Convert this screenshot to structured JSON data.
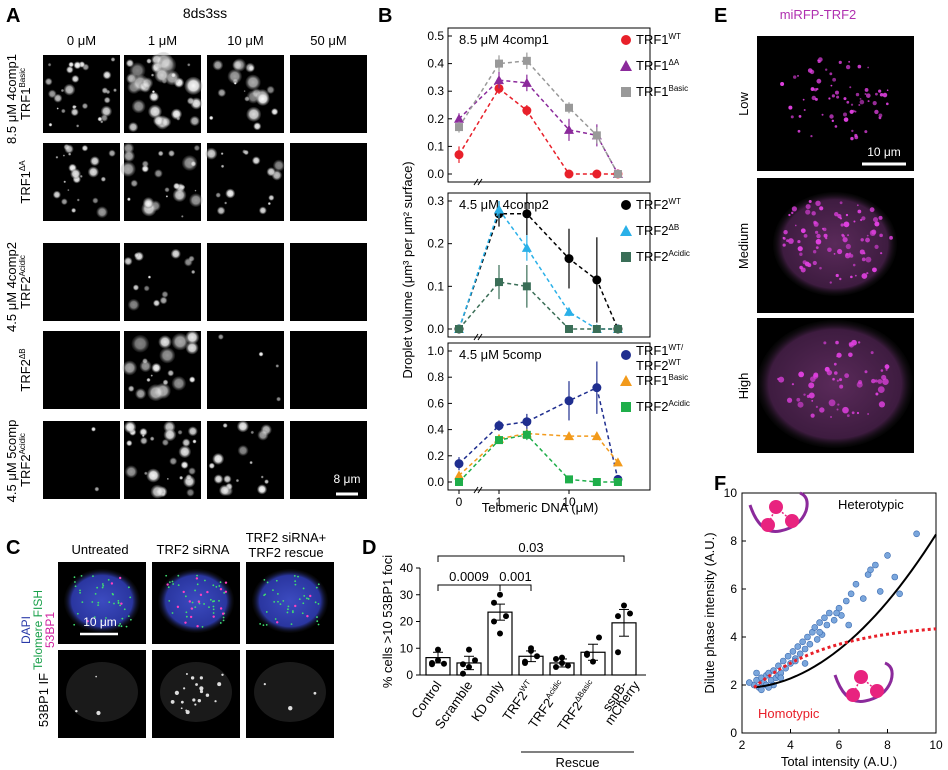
{
  "panels": {
    "A": "A",
    "B": "B",
    "C": "C",
    "D": "D",
    "E": "E",
    "F": "F"
  },
  "panel_a": {
    "header": "8ds3ss",
    "columns": [
      "0 μM",
      "1 μM",
      "10 μM",
      "50 μM"
    ],
    "group_labels": [
      "8.5 μM 4comp1",
      "4.5 μM 4comp2",
      "4.5 μM 5comp"
    ],
    "row_labels": [
      {
        "base": "TRF1",
        "sup": "Basic"
      },
      {
        "base": "TRF1",
        "sup": "ΔA"
      },
      {
        "base": "TRF2",
        "sup": "Acidic"
      },
      {
        "base": "TRF2",
        "sup": "ΔB"
      },
      {
        "base": "TRF2",
        "sup": "Acidic"
      }
    ],
    "scale_bar": "8 μm"
  },
  "panel_b": {
    "ylabel": "Droplet volume (μm³ per μm² surface)",
    "xlabel": "Telomeric DNA (μM)"
  },
  "panel_c": {
    "columns": [
      "Untreated",
      "TRF2 siRNA",
      "TRF2 siRNA+",
      "TRF2 rescue"
    ],
    "channel_labels": [
      "DAPI",
      "Telomere FISH",
      "53BP1"
    ],
    "row2_label": "53BP1 IF",
    "scale_bar": "10 μm"
  },
  "panel_e": {
    "title": "miRFP-TRF2",
    "rows": [
      "Low",
      "Medium",
      "High"
    ],
    "scale_bar": "10 μm"
  },
  "chart_data": [
    {
      "type": "line",
      "title": "8.5 μM 4comp1",
      "x": [
        0,
        1,
        2.5,
        10,
        25,
        50
      ],
      "xscale": "log (break at 0)",
      "xticks": [
        "0",
        "1",
        "10"
      ],
      "ylim": [
        0,
        0.5
      ],
      "yticks": [
        "0.0",
        "0.1",
        "0.2",
        "0.3",
        "0.4",
        "0.5"
      ],
      "series": [
        {
          "name": "TRF1",
          "sup": "WT",
          "color": "#e8202a",
          "marker": "circle",
          "values": [
            0.07,
            0.31,
            0.23,
            0.0,
            0.0,
            0.0
          ],
          "err": [
            0.03,
            0.02,
            0.02,
            0.0,
            0.0,
            0.0
          ]
        },
        {
          "name": "TRF1",
          "sup": "ΔA",
          "color": "#8b2a9b",
          "marker": "triangle",
          "values": [
            0.2,
            0.34,
            0.33,
            0.16,
            0.14,
            0.0
          ],
          "err": [
            0.02,
            0.03,
            0.03,
            0.04,
            0.04,
            0.0
          ]
        },
        {
          "name": "TRF1",
          "sup": "Basic",
          "color": "#999999",
          "marker": "square",
          "values": [
            0.17,
            0.4,
            0.41,
            0.24,
            0.14,
            0.0
          ],
          "err": [
            0.02,
            0.03,
            0.03,
            0.02,
            0.03,
            0.0
          ]
        }
      ]
    },
    {
      "type": "line",
      "title": "4.5 μM 4comp2",
      "x": [
        0,
        1,
        2.5,
        10,
        25,
        50
      ],
      "xscale": "log (break at 0)",
      "xticks": [
        "0",
        "1",
        "10"
      ],
      "ylim": [
        0,
        0.3
      ],
      "yticks": [
        "0.0",
        "0.1",
        "0.2",
        "0.3"
      ],
      "series": [
        {
          "name": "TRF2",
          "sup": "WT",
          "color": "#000000",
          "marker": "circle",
          "values": [
            0.0,
            0.27,
            0.27,
            0.165,
            0.115,
            0.0
          ],
          "err": [
            0.0,
            0.03,
            0.05,
            0.07,
            0.1,
            0.0
          ]
        },
        {
          "name": "TRF2",
          "sup": "ΔB",
          "color": "#2ab0e8",
          "marker": "triangle",
          "values": [
            0.0,
            0.28,
            0.19,
            0.04,
            0.0,
            0.0
          ],
          "err": [
            0.0,
            0.02,
            0.03,
            0.01,
            0.0,
            0.0
          ]
        },
        {
          "name": "TRF2",
          "sup": "Acidic",
          "color": "#3a6e57",
          "marker": "square",
          "values": [
            0.0,
            0.11,
            0.1,
            0.0,
            0.0,
            0.0
          ],
          "err": [
            0.0,
            0.04,
            0.05,
            0.0,
            0.0,
            0.0
          ]
        }
      ]
    },
    {
      "type": "line",
      "title": "4.5 μM 5comp",
      "x": [
        0,
        1,
        2.5,
        10,
        25,
        50
      ],
      "xscale": "log (break at 0)",
      "xticks": [
        "0",
        "1",
        "10"
      ],
      "ylim": [
        0,
        1.0
      ],
      "yticks": [
        "0.0",
        "0.2",
        "0.4",
        "0.6",
        "0.8",
        "1.0"
      ],
      "series": [
        {
          "name": "TRF1",
          "sup": "WT",
          "name2": "TRF2",
          "sup2": "WT",
          "color": "#1f2e8f",
          "marker": "circle",
          "values": [
            0.14,
            0.43,
            0.46,
            0.62,
            0.72,
            0.02
          ],
          "err": [
            0.05,
            0.04,
            0.06,
            0.15,
            0.2,
            0.0
          ]
        },
        {
          "name": "TRF1",
          "sup": "Basic",
          "color": "#f29a1b",
          "marker": "triangle",
          "values": [
            0.05,
            0.33,
            0.37,
            0.35,
            0.35,
            0.15
          ],
          "err": [
            0.0,
            0.03,
            0.03,
            0.02,
            0.02,
            0.02
          ]
        },
        {
          "name": "TRF2",
          "sup": "Acidic",
          "color": "#1fae4a",
          "marker": "square",
          "values": [
            0.0,
            0.32,
            0.36,
            0.02,
            0.0,
            0.0
          ],
          "err": [
            0.0,
            0.03,
            0.04,
            0.0,
            0.0,
            0.0
          ]
        }
      ]
    },
    {
      "type": "bar",
      "ylabel": "% cells >10 53BP1 foci",
      "ylim": [
        0,
        40
      ],
      "yticks": [
        "0",
        "10",
        "20",
        "30",
        "40"
      ],
      "categories": [
        {
          "label": "Control"
        },
        {
          "label": "Scramble"
        },
        {
          "label": "KD only"
        },
        {
          "label": "TRF2",
          "sup": "WT"
        },
        {
          "label": "TRF2",
          "sup": "Acidic"
        },
        {
          "label": "TRF2",
          "sup": "ΔBasic"
        },
        {
          "label": "sspB-",
          "label2": "mCherry"
        }
      ],
      "values": [
        6.5,
        4.5,
        23.5,
        7,
        4.5,
        8.5,
        19.5
      ],
      "err": [
        2,
        2.5,
        3,
        2,
        1.5,
        3,
        5
      ],
      "points": [
        [
          4.5,
          9.5,
          4.2,
          4,
          5.5
        ],
        [
          0.5,
          3,
          5.5,
          4,
          9.5
        ],
        [
          27,
          30,
          22,
          20,
          15.5
        ],
        [
          5,
          9,
          7,
          4.5,
          10
        ],
        [
          3,
          6.5,
          3.5,
          6,
          4.5
        ],
        [
          7.5,
          5,
          14,
          8
        ],
        [
          22,
          26,
          23,
          8.5
        ]
      ],
      "group_label": "Rescue",
      "comparisons": [
        {
          "from": "Control",
          "to": "sspB-mCherry",
          "p": "0.03"
        },
        {
          "from": "Control",
          "to": "KD only",
          "p": "0.0009"
        },
        {
          "from": "KD only",
          "to": "TRF2 WT",
          "p": "0.001"
        }
      ]
    },
    {
      "type": "scatter",
      "xlabel": "Total intensity (A.U.)",
      "ylabel": "Dilute phase intensity (A.U.)",
      "xlim": [
        2,
        10
      ],
      "ylim": [
        0,
        10
      ],
      "xticks": [
        "2",
        "4",
        "6",
        "8",
        "10"
      ],
      "yticks": [
        "0",
        "2",
        "4",
        "6",
        "8",
        "10"
      ],
      "points_x": [
        2.5,
        2.6,
        2.7,
        2.8,
        2.9,
        3.0,
        3.0,
        3.1,
        3.2,
        3.3,
        3.4,
        3.5,
        3.5,
        3.6,
        3.7,
        3.8,
        3.9,
        4.0,
        4.1,
        4.2,
        4.3,
        4.4,
        4.5,
        4.6,
        4.7,
        4.8,
        4.9,
        5.0,
        5.1,
        5.2,
        5.3,
        5.4,
        5.5,
        5.6,
        5.8,
        6.0,
        6.1,
        6.3,
        6.5,
        6.7,
        7.0,
        7.2,
        7.5,
        7.7,
        8.0,
        8.3,
        8.5,
        9.2,
        2.3,
        2.8,
        3.3,
        3.6,
        4.2,
        4.6,
        5.2,
        5.9,
        6.4,
        7.3,
        2.6,
        3.1
      ],
      "points_y": [
        2.0,
        2.2,
        1.9,
        2.3,
        2.1,
        2.4,
        2.0,
        2.5,
        2.2,
        2.6,
        2.3,
        2.8,
        2.4,
        2.5,
        3.0,
        2.7,
        3.2,
        2.9,
        3.4,
        3.1,
        3.6,
        3.3,
        3.8,
        3.5,
        4.0,
        3.7,
        4.2,
        4.4,
        3.9,
        4.6,
        4.1,
        4.8,
        4.5,
        5.0,
        4.7,
        5.2,
        4.9,
        5.5,
        5.8,
        6.2,
        5.6,
        6.6,
        7.0,
        5.9,
        7.4,
        6.5,
        5.8,
        8.3,
        2.1,
        1.8,
        2.0,
        2.3,
        3.0,
        2.9,
        4.2,
        5.0,
        4.5,
        6.8,
        2.5,
        1.9
      ],
      "fits": [
        {
          "name": "Heterotypic",
          "style": "solid",
          "color": "#000000"
        },
        {
          "name": "Homotypic",
          "style": "dashed",
          "color": "#e8202a"
        }
      ]
    }
  ]
}
